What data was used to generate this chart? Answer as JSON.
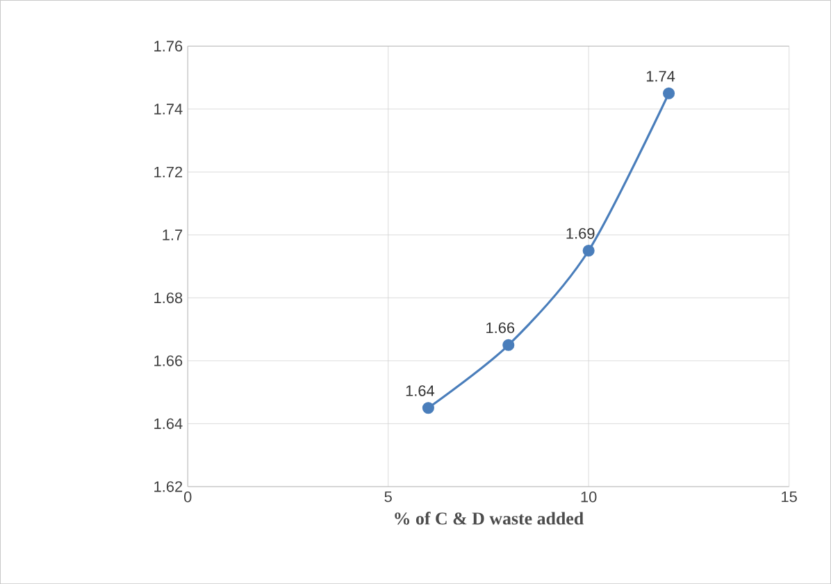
{
  "chart_data": {
    "type": "line",
    "xlabel": "% of C & D waste added",
    "x": [
      6,
      8,
      10,
      12
    ],
    "series": [
      {
        "color": "#4a7ebb",
        "values": [
          1.645,
          1.665,
          1.695,
          1.745
        ],
        "value_labels": [
          "1.64",
          "1.66",
          "1.69",
          "1.74"
        ]
      }
    ],
    "xlim": [
      0,
      15
    ],
    "xticks": [
      0,
      5,
      10,
      15
    ],
    "ylim": [
      1.62,
      1.76
    ],
    "yticks": [
      1.62,
      1.64,
      1.66,
      1.68,
      1.7,
      1.72,
      1.74,
      1.76
    ],
    "grid": true,
    "marker": "circle",
    "line_style": "solid"
  }
}
